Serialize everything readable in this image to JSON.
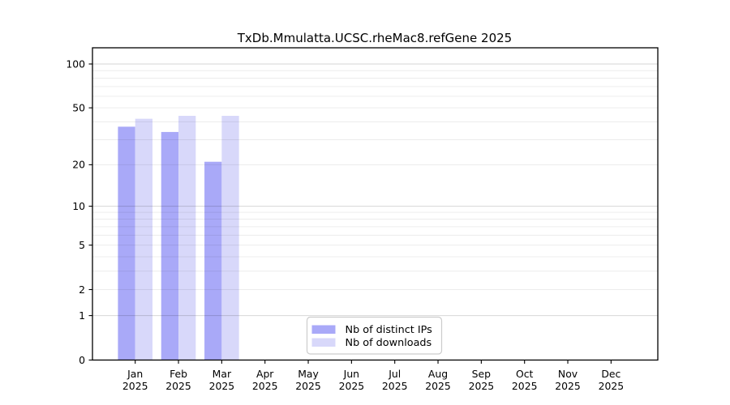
{
  "chart_data": {
    "type": "bar",
    "title": "TxDb.Mmulatta.UCSC.rheMac8.refGene 2025",
    "categories": [
      "Jan 2025",
      "Feb 2025",
      "Mar 2025",
      "Apr 2025",
      "May 2025",
      "Jun 2025",
      "Jul 2025",
      "Aug 2025",
      "Sep 2025",
      "Oct 2025",
      "Nov 2025",
      "Dec 2025"
    ],
    "months": [
      "Jan",
      "Feb",
      "Mar",
      "Apr",
      "May",
      "Jun",
      "Jul",
      "Aug",
      "Sep",
      "Oct",
      "Nov",
      "Dec"
    ],
    "year": "2025",
    "series": [
      {
        "name": "Nb of distinct IPs",
        "color": "#a9a9f8",
        "values": [
          37,
          34,
          21,
          0,
          0,
          0,
          0,
          0,
          0,
          0,
          0,
          0
        ]
      },
      {
        "name": "Nb of downloads",
        "color": "#d8d8fa",
        "values": [
          42,
          44,
          44,
          0,
          0,
          0,
          0,
          0,
          0,
          0,
          0,
          0
        ]
      }
    ],
    "xlabel": "",
    "ylabel": "",
    "y_axis": {
      "scale": "log1p",
      "ylim": [
        0,
        130
      ],
      "tick_values": [
        0,
        1,
        2,
        5,
        10,
        20,
        50,
        100
      ],
      "tick_labels": [
        "0",
        "1",
        "2",
        "5",
        "10",
        "20",
        "50",
        "100"
      ],
      "major_grid_values": [
        1,
        10,
        100
      ],
      "minor_grid_values": [
        2,
        3,
        4,
        5,
        6,
        7,
        8,
        9,
        20,
        30,
        40,
        50,
        60,
        70,
        80,
        90
      ]
    },
    "grid": true,
    "legend": {
      "position": "bottom-center",
      "entries": [
        "Nb of distinct IPs",
        "Nb of downloads"
      ]
    }
  },
  "colors": {
    "distinct_ips": "#a9a9f8",
    "downloads": "#d8d8fa",
    "minor_grid": "rgba(0,0,0,0.075)",
    "major_grid": "rgba(0,0,0,0.16)",
    "spine": "#000000",
    "legend_border": "#cccccc",
    "legend_bg": "rgba(255,255,255,0.85)",
    "text": "#000000"
  }
}
